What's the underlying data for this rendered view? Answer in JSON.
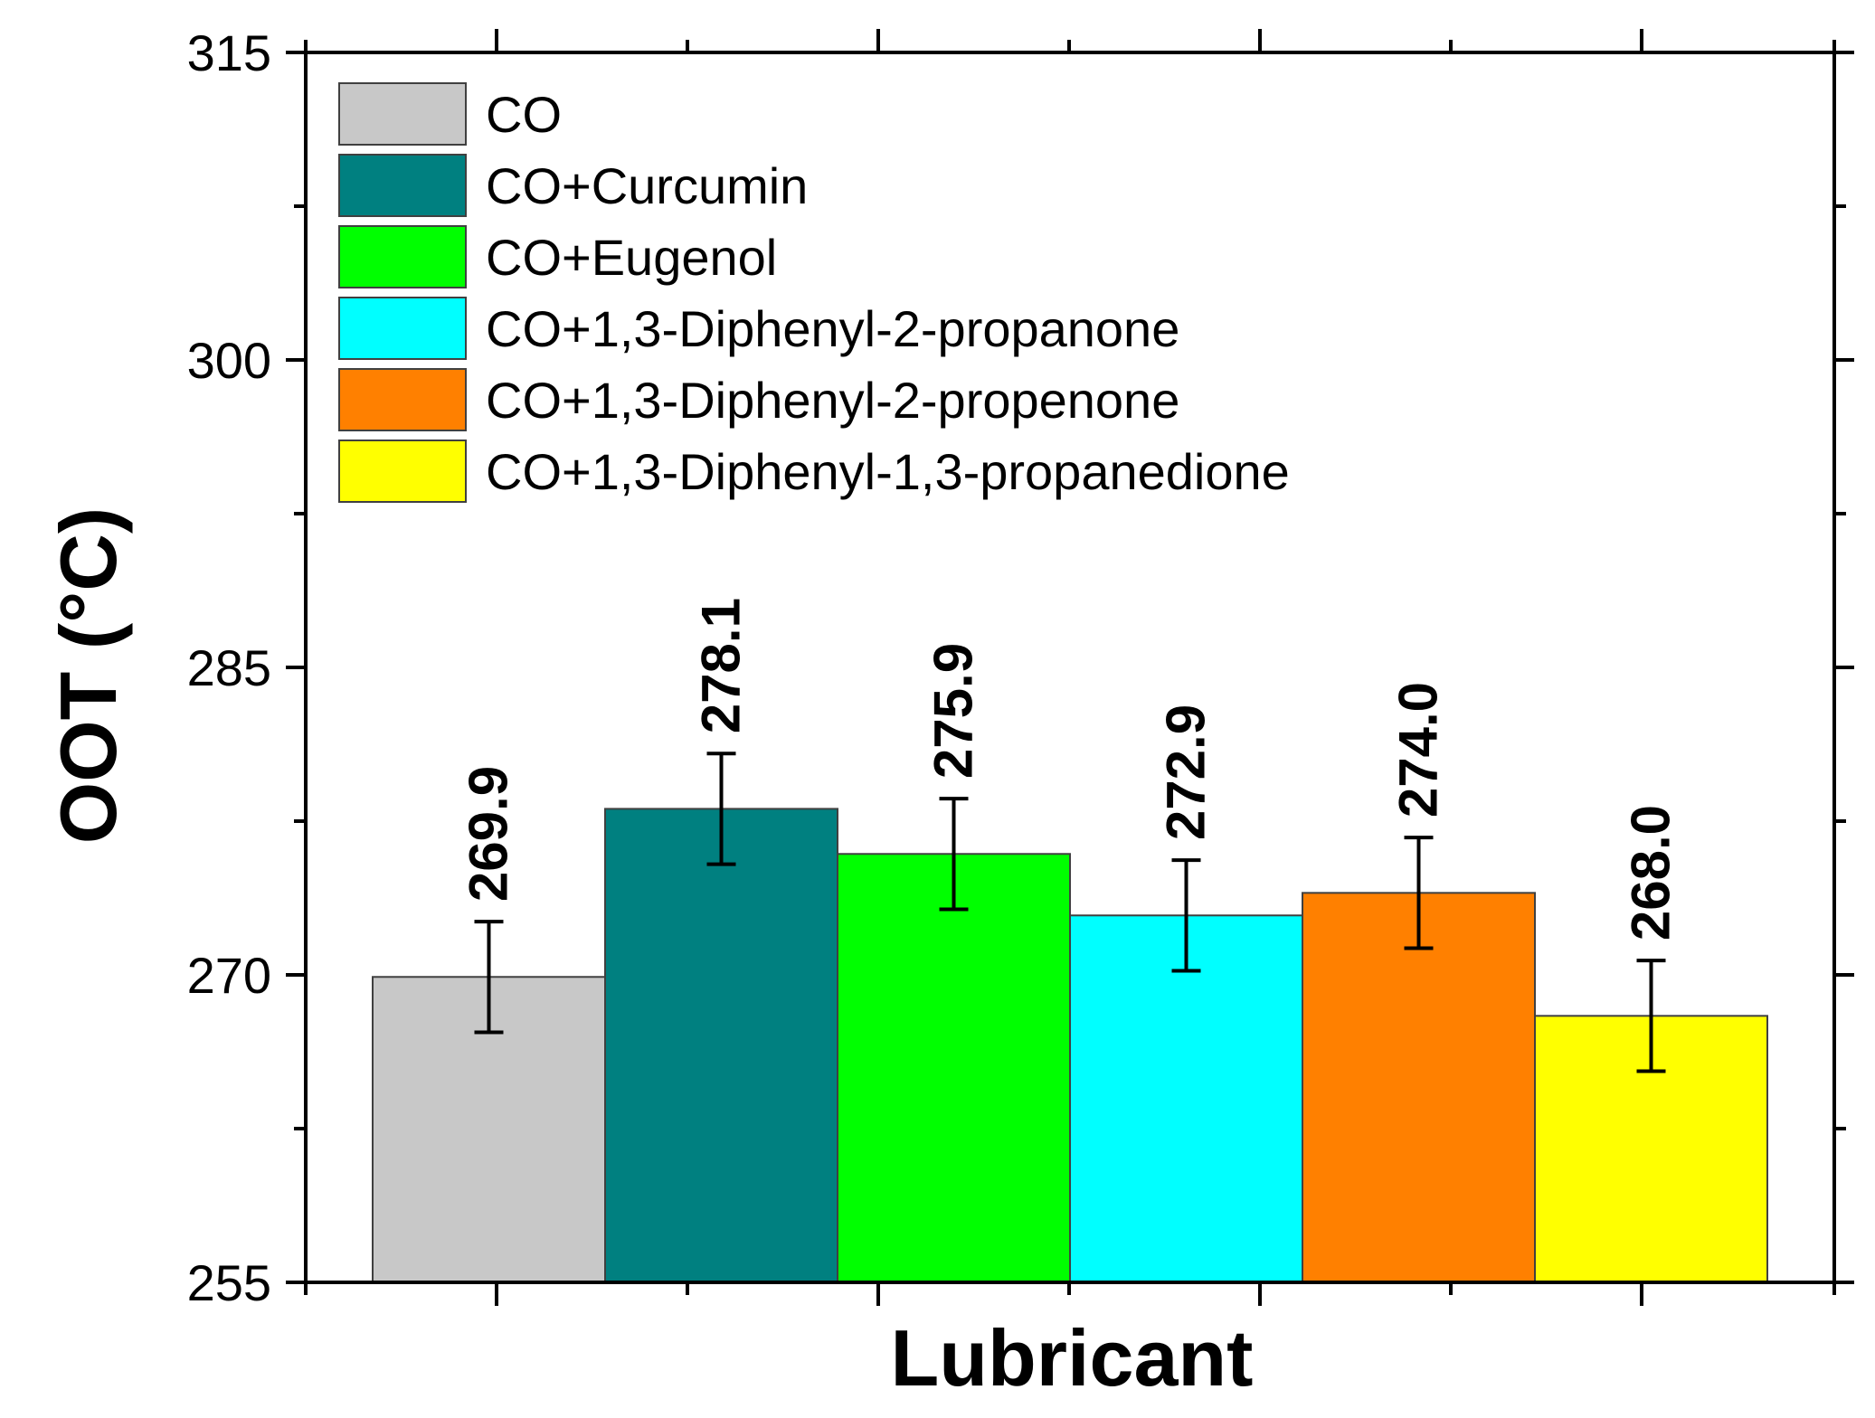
{
  "chart_data": {
    "type": "bar",
    "title": "",
    "xlabel": "Lubricant",
    "ylabel": "OOT (°C)",
    "ylim": [
      255,
      315
    ],
    "yticks": [
      "255",
      "270",
      "285",
      "300",
      "315"
    ],
    "grid": false,
    "legend_position": "top-left",
    "series": [
      {
        "name": "CO",
        "value": 269.9,
        "label": "269.9",
        "error": 2.7,
        "color": "#c8c8c8"
      },
      {
        "name": "CO+Curcumin",
        "value": 278.1,
        "label": "278.1",
        "error": 2.7,
        "color": "#008080"
      },
      {
        "name": "CO+Eugenol",
        "value": 275.9,
        "label": "275.9",
        "error": 2.7,
        "color": "#00ff00"
      },
      {
        "name": "CO+1,3-Diphenyl-2-propanone",
        "value": 272.9,
        "label": "272.9",
        "error": 2.7,
        "color": "#00ffff"
      },
      {
        "name": "CO+1,3-Diphenyl-2-propenone",
        "value": 274.0,
        "label": "274.0",
        "error": 2.7,
        "color": "#ff8000"
      },
      {
        "name": "CO+1,3-Diphenyl-1,3-propanedione",
        "value": 268.0,
        "label": "268.0",
        "error": 2.7,
        "color": "#ffff00"
      }
    ]
  }
}
